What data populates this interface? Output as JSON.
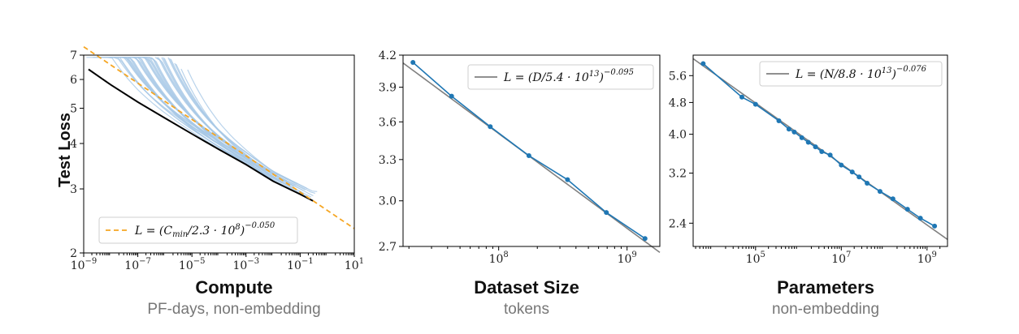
{
  "colors": {
    "blue": "#1f77b4",
    "light_blue": "#a8c8e6",
    "orange": "#f5a623",
    "black": "#000000",
    "fit_gray": "#808080"
  },
  "chart_data": [
    {
      "type": "line",
      "ylabel": "Test Loss",
      "x_title": "Compute",
      "x_subtitle": "PF-days, non-embedding",
      "xscale": "log",
      "yscale": "log",
      "xlim": [
        1e-09,
        10
      ],
      "ylim": [
        2,
        7
      ],
      "xticks": [
        1e-09,
        1e-07,
        1e-05,
        0.001,
        0.1,
        10
      ],
      "xtick_labels": [
        [
          "10",
          "−9"
        ],
        [
          "10",
          "−7"
        ],
        [
          "10",
          "−5"
        ],
        [
          "10",
          "−3"
        ],
        [
          "10",
          "−1"
        ],
        [
          "10",
          "1"
        ]
      ],
      "yticks": [
        2,
        3,
        4,
        5,
        6,
        7
      ],
      "ytick_labels": [
        "2",
        "3",
        "4",
        "5",
        "6",
        "7"
      ],
      "legend_position": "lower-left",
      "legend": {
        "prefix": "L = (C",
        "sub": "min",
        "mid": "/2.3 · 10",
        "exp1": "8",
        "close": ")",
        "exp2": "−0.050"
      },
      "fit": {
        "coef": 230000000.0,
        "exponent": -0.05
      },
      "frontier": [
        [
          1.5e-09,
          6.4
        ],
        [
          1e-08,
          5.8
        ],
        [
          1e-07,
          5.2
        ],
        [
          1e-06,
          4.7
        ],
        [
          1e-05,
          4.25
        ],
        [
          0.0001,
          3.85
        ],
        [
          0.001,
          3.5
        ],
        [
          0.01,
          3.15
        ],
        [
          0.1,
          2.9
        ],
        [
          0.3,
          2.78
        ]
      ],
      "num_runs": 40
    },
    {
      "type": "line",
      "x_title": "Dataset Size",
      "x_subtitle": "tokens",
      "xscale": "log",
      "yscale": "log",
      "xlim": [
        18000000.0,
        1800000000.0
      ],
      "ylim": [
        2.7,
        4.2
      ],
      "xticks": [
        100000000.0,
        1000000000.0
      ],
      "xtick_labels": [
        [
          "10",
          "8"
        ],
        [
          "10",
          "9"
        ]
      ],
      "yticks": [
        2.7,
        3.0,
        3.3,
        3.6,
        3.9,
        4.2
      ],
      "ytick_labels": [
        "2.7",
        "3.0",
        "3.3",
        "3.6",
        "3.9",
        "4.2"
      ],
      "legend_position": "top-right",
      "legend": {
        "prefix": "L = (D/5.4 · 10",
        "exp1": "13",
        "close": ")",
        "exp2": "−0.095"
      },
      "fit": {
        "coef": 54000000000000.0,
        "exponent": -0.095
      },
      "x": [
        21500000.0,
        43000000.0,
        86000000.0,
        172000000.0,
        344000000.0,
        690000000.0,
        1380000000.0
      ],
      "y": [
        4.13,
        3.82,
        3.56,
        3.33,
        3.15,
        2.92,
        2.75
      ]
    },
    {
      "type": "line",
      "x_title": "Parameters",
      "x_subtitle": "non-embedding",
      "xscale": "log",
      "yscale": "log",
      "xlim": [
        3500.0,
        3000000000.0
      ],
      "ylim": [
        2.1,
        6.3
      ],
      "xticks": [
        100000.0,
        10000000.0,
        1000000000.0
      ],
      "xtick_labels": [
        [
          "10",
          "5"
        ],
        [
          "10",
          "7"
        ],
        [
          "10",
          "9"
        ]
      ],
      "yticks": [
        2.4,
        3.2,
        4.0,
        4.8,
        5.6
      ],
      "ytick_labels": [
        "2.4",
        "3.2",
        "4.0",
        "4.8",
        "5.6"
      ],
      "legend_position": "top-right",
      "legend": {
        "prefix": "L = (N/8.8 · 10",
        "exp1": "13",
        "close": ")",
        "exp2": "−0.076"
      },
      "fit": {
        "coef": 88000000000000.0,
        "exponent": -0.076
      },
      "x": [
        6000.0,
        48000.0,
        100000.0,
        350000.0,
        600000.0,
        800000.0,
        1200000.0,
        1700000.0,
        2500000.0,
        3500000.0,
        5500000.0,
        10000000.0,
        18000000.0,
        26000000.0,
        40000000.0,
        80000000.0,
        160000000.0,
        350000000.0,
        700000000.0,
        1500000000.0
      ],
      "y": [
        6.0,
        4.95,
        4.75,
        4.32,
        4.12,
        4.05,
        3.92,
        3.82,
        3.72,
        3.62,
        3.55,
        3.35,
        3.22,
        3.13,
        3.02,
        2.88,
        2.76,
        2.6,
        2.47,
        2.36
      ]
    }
  ]
}
